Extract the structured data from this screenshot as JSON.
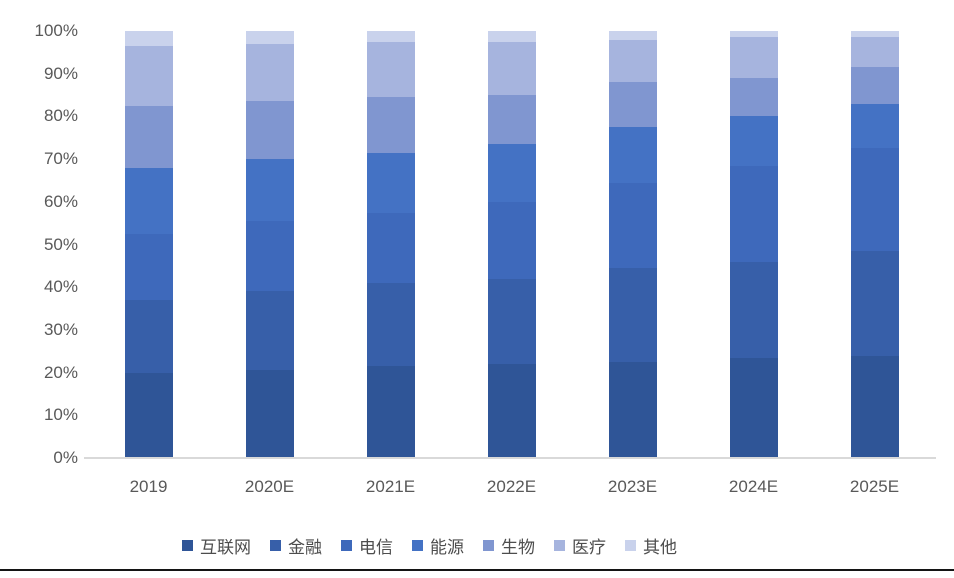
{
  "chart_data": {
    "type": "bar",
    "stacked": true,
    "percent_stacked": true,
    "title": "",
    "xlabel": "",
    "ylabel": "",
    "ylim": [
      0,
      100
    ],
    "grid": false,
    "legend_position": "bottom",
    "y_ticks": [
      "100%",
      "90%",
      "80%",
      "70%",
      "60%",
      "50%",
      "40%",
      "30%",
      "20%",
      "10%",
      "0%"
    ],
    "categories": [
      "2019",
      "2020E",
      "2021E",
      "2022E",
      "2023E",
      "2024E",
      "2025E"
    ],
    "series": [
      {
        "key": "internet",
        "name": "互联网",
        "color": "#2F5597",
        "values": [
          20.0,
          20.5,
          21.5,
          22.0,
          22.5,
          23.5,
          24.0
        ]
      },
      {
        "key": "finance",
        "name": "金融",
        "color": "#375FA9",
        "values": [
          17.0,
          18.5,
          19.5,
          20.0,
          22.0,
          22.5,
          24.5
        ]
      },
      {
        "key": "telecom",
        "name": "电信",
        "color": "#3E69BB",
        "values": [
          15.5,
          16.5,
          16.5,
          18.0,
          20.0,
          22.5,
          24.0
        ]
      },
      {
        "key": "energy",
        "name": "能源",
        "color": "#4472C4",
        "values": [
          15.5,
          14.5,
          14.0,
          13.5,
          13.0,
          11.5,
          10.5
        ]
      },
      {
        "key": "biotech",
        "name": "生物",
        "color": "#8096D0",
        "values": [
          14.5,
          13.5,
          13.0,
          11.5,
          10.5,
          9.0,
          8.5
        ]
      },
      {
        "key": "medical",
        "name": "医疗",
        "color": "#A6B4DE",
        "values": [
          14.0,
          13.5,
          13.0,
          12.5,
          10.0,
          9.5,
          7.0
        ]
      },
      {
        "key": "other",
        "name": "其他",
        "color": "#C9D2EC",
        "values": [
          3.5,
          3.0,
          2.5,
          2.5,
          2.0,
          1.5,
          1.5
        ]
      }
    ],
    "axis_color": "#d9d9d9",
    "tick_label_color": "#595959"
  }
}
